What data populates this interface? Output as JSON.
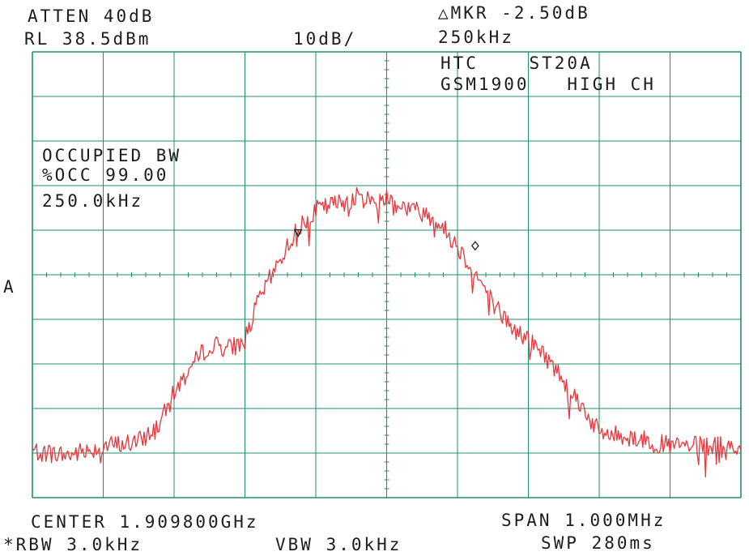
{
  "header": {
    "atten": "ATTEN 40dB",
    "ref_level": "RL 38.5dBm",
    "scale": "10dB/",
    "marker_delta": "△MKR -2.50dB",
    "marker_freq": "250kHz",
    "device": "HTC    ST20A",
    "band": "GSM1900   HIGH CH"
  },
  "overlay": {
    "title": "OCCUPIED BW",
    "percent": "%OCC 99.00",
    "bandwidth": "250.0kHz",
    "trace_id": "A"
  },
  "footer": {
    "center": "CENTER 1.909800GHz",
    "span": "SPAN 1.000MHz",
    "rbw": "*RBW 3.0kHz",
    "vbw": "VBW 3.0kHz",
    "sweep": "SWP 280ms"
  },
  "colors": {
    "grid": "#1f8f6f",
    "trace": "#e8363c",
    "marker": "#1a1a1a"
  },
  "chart_data": {
    "type": "line",
    "x_unit": "MHz offset from center",
    "y_unit": "dBm",
    "xlim": [
      -0.5,
      0.5
    ],
    "ylim": [
      -61.5,
      38.5
    ],
    "grid": true,
    "grid_divisions": {
      "x": 10,
      "y": 10
    },
    "series": [
      {
        "x": [
          -0.5,
          -0.45,
          -0.4,
          -0.35,
          -0.32,
          -0.3,
          -0.28,
          -0.25,
          -0.22,
          -0.2,
          -0.18,
          -0.16,
          -0.15,
          -0.14,
          -0.12,
          -0.1,
          -0.08,
          -0.06,
          -0.04,
          -0.02,
          0.0,
          0.02,
          0.04,
          0.06,
          0.08,
          0.1,
          0.12,
          0.14,
          0.16,
          0.18,
          0.2,
          0.22,
          0.25,
          0.28,
          0.3,
          0.35,
          0.4,
          0.45,
          0.5
        ],
        "y": [
          -51,
          -52,
          -50,
          -49,
          -45,
          -38,
          -33,
          -27,
          -28,
          -26,
          -17,
          -11,
          -8,
          -5,
          0,
          3,
          4,
          5,
          6,
          5,
          6,
          4,
          3,
          2,
          -1,
          -5,
          -10,
          -15,
          -20,
          -24,
          -26,
          -29,
          -35,
          -42,
          -47,
          -48,
          -50,
          -50,
          -50
        ]
      }
    ],
    "markers": [
      {
        "x": -0.125,
        "y": -2.5,
        "symbol": "triangle"
      },
      {
        "x": 0.125,
        "y": -5.0,
        "symbol": "diamond"
      }
    ]
  }
}
